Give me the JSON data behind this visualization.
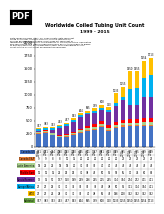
{
  "title": "Worldwide Coiled Tubing Unit Count",
  "subtitle": "1999 - 2015",
  "years": [
    1999,
    2000,
    2001,
    2002,
    2003,
    2004,
    2005,
    2006,
    2007,
    2008,
    2009,
    2010,
    2011,
    2012,
    2013,
    2014,
    2015
  ],
  "categories": [
    "Canada US",
    "Canada E&P",
    "Latin America",
    "Middle East",
    "Russia/Former",
    "Europe/Africa",
    "WCO",
    "Subtotal"
  ],
  "colors": [
    "#4472C4",
    "#ED7D31",
    "#A9D18E",
    "#FF0000",
    "#7030A0",
    "#00B0F0",
    "#FFC000",
    "#70AD47"
  ],
  "data": {
    "Canada US": [
      251,
      271,
      224,
      180,
      193,
      220,
      265,
      301,
      327,
      381,
      303,
      349,
      385,
      395,
      395,
      399,
      399
    ],
    "Canada E&P": [
      9,
      9,
      8,
      8,
      10,
      15,
      20,
      20,
      20,
      20,
      20,
      20,
      23,
      23,
      23,
      23,
      23
    ],
    "Latin America": [
      18,
      22,
      22,
      18,
      18,
      20,
      30,
      35,
      35,
      40,
      40,
      45,
      45,
      45,
      45,
      45,
      45
    ],
    "Middle East": [
      12,
      12,
      15,
      22,
      25,
      25,
      30,
      38,
      45,
      50,
      55,
      59,
      65,
      70,
      74,
      80,
      82
    ],
    "Russia/Former": [
      13,
      15,
      51,
      137,
      150,
      199,
      229,
      226,
      225,
      215,
      245,
      314,
      374,
      274,
      272,
      401,
      411
    ],
    "Europe/Africa": [
      27,
      27,
      29,
      30,
      31,
      33,
      35,
      35,
      39,
      46,
      48,
      50,
      55,
      311,
      314,
      374,
      411
    ],
    "WCO": [
      27,
      27,
      24,
      28,
      30,
      31,
      35,
      40,
      48,
      56,
      49,
      196,
      208,
      332,
      332,
      332,
      342
    ],
    "Subtotal": [
      357,
      383,
      373,
      423,
      457,
      543,
      644,
      695,
      739,
      808,
      760,
      1033,
      1155,
      1450,
      1455,
      1654,
      1713
    ]
  },
  "bar_data": {
    "Canada US": [
      251,
      271,
      224,
      180,
      193,
      220,
      265,
      301,
      327,
      381,
      303,
      349,
      385,
      395,
      395,
      399,
      399
    ],
    "Canada E&P": [
      9,
      9,
      8,
      8,
      10,
      15,
      20,
      20,
      20,
      20,
      20,
      20,
      23,
      23,
      23,
      23,
      23
    ],
    "Latin America": [
      18,
      22,
      22,
      18,
      18,
      20,
      30,
      35,
      35,
      40,
      40,
      45,
      45,
      45,
      45,
      45,
      45
    ],
    "Middle East": [
      12,
      12,
      15,
      22,
      25,
      25,
      30,
      38,
      45,
      50,
      55,
      59,
      65,
      70,
      74,
      80,
      82
    ],
    "Russia/Former": [
      13,
      15,
      51,
      137,
      150,
      199,
      229,
      226,
      225,
      215,
      245,
      314,
      374,
      274,
      272,
      401,
      411
    ],
    "Europe/Africa": [
      27,
      27,
      29,
      30,
      31,
      33,
      35,
      35,
      39,
      46,
      48,
      50,
      55,
      311,
      314,
      374,
      411
    ],
    "WCO": [
      27,
      27,
      24,
      28,
      30,
      31,
      35,
      40,
      48,
      56,
      49,
      196,
      208,
      332,
      332,
      332,
      342
    ]
  },
  "bar_colors": [
    "#4472C4",
    "#ED7D31",
    "#A9D18E",
    "#FF0000",
    "#7030A0",
    "#00B0F0",
    "#FFC000"
  ],
  "bar_categories": [
    "Canada US",
    "Canada E&P",
    "Latin America",
    "Middle East",
    "Russia/Former",
    "Europe/Africa",
    "WCO"
  ],
  "text_color": "#000000",
  "background_color": "#FFFFFF",
  "table_rows": [
    "Canada US",
    "Canada E&P",
    "Latin America",
    "Middle East",
    "Russia/Former",
    "Europe/Africa",
    "WCO",
    "Subtotal"
  ],
  "table_colors": [
    "#4472C4",
    "#ED7D31",
    "#A9D18E",
    "#FF0000",
    "#7030A0",
    "#00B0F0",
    "#FFC000",
    "#70AD47"
  ]
}
